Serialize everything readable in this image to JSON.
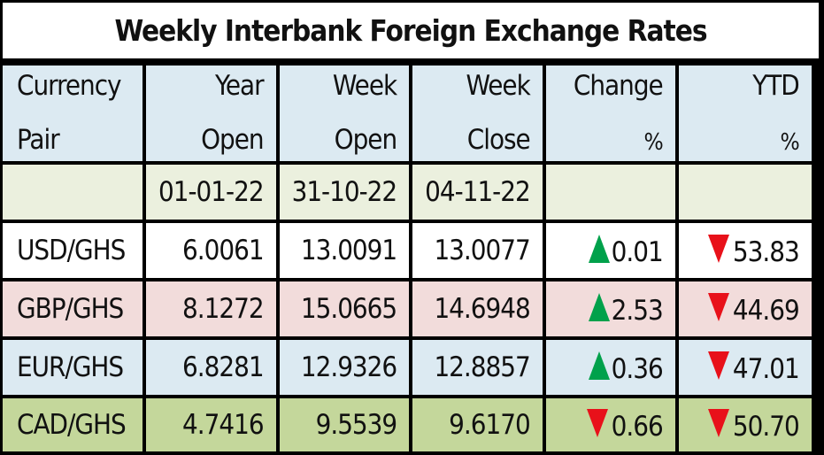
{
  "title": "Weekly Interbank Foreign Exchange Rates",
  "headers": {
    "pair": [
      "Currency",
      "Pair"
    ],
    "year_open": [
      "Year",
      "Open"
    ],
    "week_open": [
      "Week",
      "Open"
    ],
    "week_close": [
      "Week",
      "Close"
    ],
    "change": [
      "Change",
      "%"
    ],
    "ytd": [
      "YTD",
      "%"
    ]
  },
  "dates": {
    "pair": "",
    "year_open": "01-01-22",
    "week_open": "31-10-22",
    "week_close": "04-11-22",
    "change": "",
    "ytd": ""
  },
  "colors": {
    "up": "#00a14b",
    "down": "#e8111a"
  },
  "rows": [
    {
      "pair": "USD/GHS",
      "year_open": "6.0061",
      "week_open": "13.0091",
      "week_close": "13.0077",
      "change": "0.01",
      "change_dir": "up",
      "ytd": "53.83",
      "ytd_dir": "down"
    },
    {
      "pair": "GBP/GHS",
      "year_open": "8.1272",
      "week_open": "15.0665",
      "week_close": "14.6948",
      "change": "2.53",
      "change_dir": "up",
      "ytd": "44.69",
      "ytd_dir": "down"
    },
    {
      "pair": "EUR/GHS",
      "year_open": "6.8281",
      "week_open": "12.9326",
      "week_close": "12.8857",
      "change": "0.36",
      "change_dir": "up",
      "ytd": "47.01",
      "ytd_dir": "down"
    },
    {
      "pair": "CAD/GHS",
      "year_open": "4.7416",
      "week_open": "9.5539",
      "week_close": "9.6170",
      "change": "0.66",
      "change_dir": "down",
      "ytd": "50.70",
      "ytd_dir": "down"
    }
  ]
}
